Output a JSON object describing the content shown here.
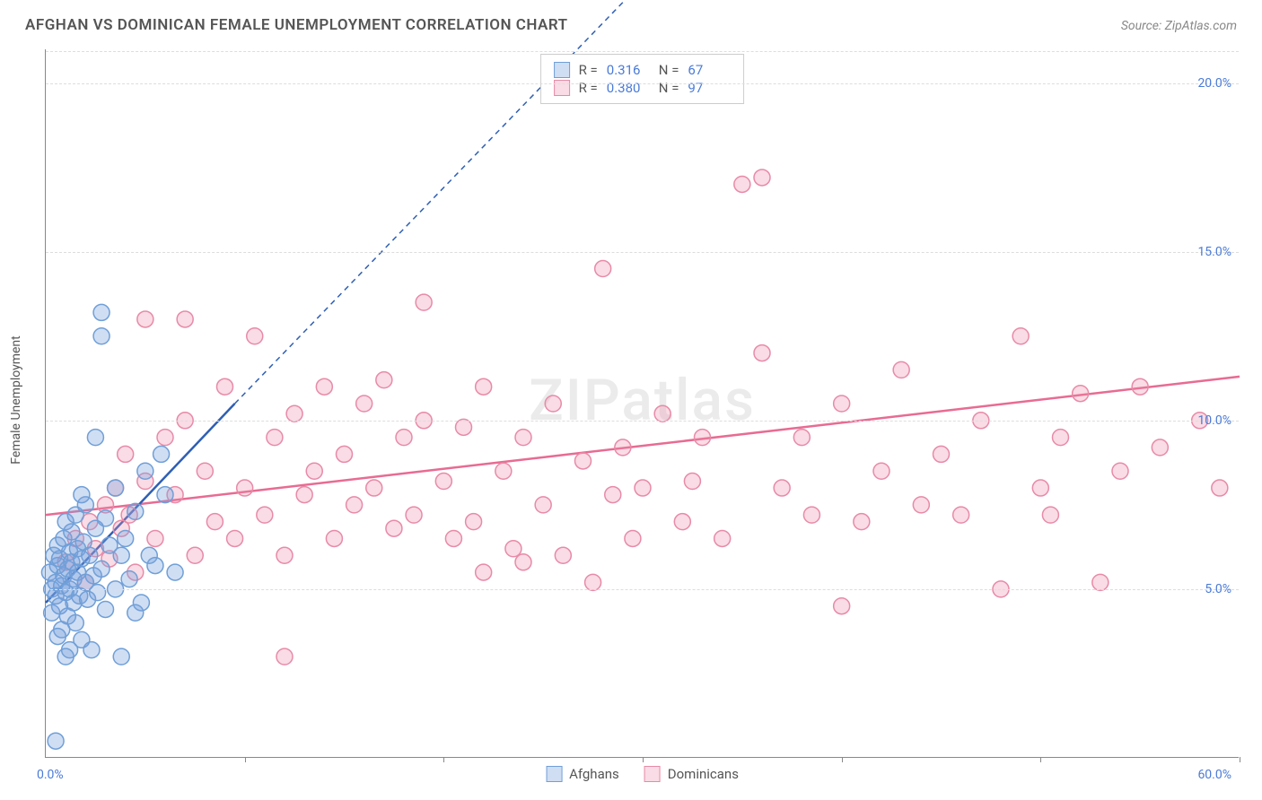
{
  "header": {
    "title": "AFGHAN VS DOMINICAN FEMALE UNEMPLOYMENT CORRELATION CHART",
    "source": "Source: ZipAtlas.com"
  },
  "chart": {
    "type": "scatter",
    "watermark": "ZIPatlas",
    "background_color": "#ffffff",
    "grid_color": "#dddddd",
    "axis_color": "#888888",
    "y_axis_title": "Female Unemployment",
    "xlim": [
      0,
      60
    ],
    "ylim": [
      0,
      21
    ],
    "x_ticks": [
      0,
      10,
      20,
      30,
      40,
      50,
      60
    ],
    "x_tick_labels": {
      "0": "0.0%",
      "60": "60.0%"
    },
    "y_ticks": [
      5,
      10,
      15,
      20
    ],
    "y_tick_labels": {
      "5": "5.0%",
      "10": "10.0%",
      "15": "15.0%",
      "20": "20.0%"
    },
    "marker_radius": 9,
    "marker_stroke_width": 1.5,
    "series": {
      "afghans": {
        "label": "Afghans",
        "color_fill": "rgba(120,160,220,0.35)",
        "color_stroke": "#6f9fd8",
        "R": "0.316",
        "N": "67",
        "trend": {
          "x1": 0,
          "y1": 4.6,
          "x2": 9.5,
          "y2": 10.5,
          "dash_x2": 30,
          "dash_y2": 23,
          "color": "#2f5fb5",
          "width": 2.5
        },
        "points": [
          [
            0.2,
            5.5
          ],
          [
            0.3,
            5.0
          ],
          [
            0.3,
            4.3
          ],
          [
            0.4,
            6.0
          ],
          [
            0.5,
            5.2
          ],
          [
            0.5,
            4.8
          ],
          [
            0.6,
            5.7
          ],
          [
            0.6,
            6.3
          ],
          [
            0.7,
            4.5
          ],
          [
            0.7,
            5.9
          ],
          [
            0.8,
            5.1
          ],
          [
            0.8,
            3.8
          ],
          [
            0.9,
            6.5
          ],
          [
            0.9,
            5.4
          ],
          [
            1.0,
            4.9
          ],
          [
            1.0,
            7.0
          ],
          [
            1.1,
            5.6
          ],
          [
            1.1,
            4.2
          ],
          [
            1.2,
            6.1
          ],
          [
            1.2,
            5.0
          ],
          [
            1.3,
            5.8
          ],
          [
            1.3,
            6.7
          ],
          [
            1.4,
            4.6
          ],
          [
            1.4,
            5.3
          ],
          [
            1.5,
            7.2
          ],
          [
            1.5,
            4.0
          ],
          [
            1.6,
            5.5
          ],
          [
            1.6,
            6.2
          ],
          [
            1.7,
            4.8
          ],
          [
            1.8,
            5.9
          ],
          [
            1.8,
            3.5
          ],
          [
            1.9,
            6.4
          ],
          [
            2.0,
            5.2
          ],
          [
            2.0,
            7.5
          ],
          [
            2.1,
            4.7
          ],
          [
            2.2,
            6.0
          ],
          [
            2.3,
            3.2
          ],
          [
            2.4,
            5.4
          ],
          [
            2.5,
            6.8
          ],
          [
            2.6,
            4.9
          ],
          [
            2.8,
            5.6
          ],
          [
            3.0,
            7.1
          ],
          [
            3.0,
            4.4
          ],
          [
            3.2,
            6.3
          ],
          [
            3.5,
            5.0
          ],
          [
            3.5,
            8.0
          ],
          [
            3.8,
            3.0
          ],
          [
            4.0,
            6.5
          ],
          [
            4.2,
            5.3
          ],
          [
            4.5,
            7.3
          ],
          [
            4.8,
            4.6
          ],
          [
            5.0,
            8.5
          ],
          [
            5.2,
            6.0
          ],
          [
            5.5,
            5.7
          ],
          [
            5.8,
            9.0
          ],
          [
            6.0,
            7.8
          ],
          [
            6.5,
            5.5
          ],
          [
            0.5,
            0.5
          ],
          [
            1.2,
            3.2
          ],
          [
            2.5,
            9.5
          ],
          [
            2.8,
            12.5
          ],
          [
            2.8,
            13.2
          ],
          [
            1.0,
            3.0
          ],
          [
            1.8,
            7.8
          ],
          [
            0.6,
            3.6
          ],
          [
            3.8,
            6.0
          ],
          [
            4.5,
            4.3
          ]
        ]
      },
      "dominicans": {
        "label": "Dominicans",
        "color_fill": "rgba(235,140,170,0.30)",
        "color_stroke": "#e88aa8",
        "R": "0.380",
        "N": "97",
        "trend": {
          "x1": 0,
          "y1": 7.2,
          "x2": 60,
          "y2": 11.3,
          "color": "#e86b93",
          "width": 2.5
        },
        "points": [
          [
            1.0,
            5.8
          ],
          [
            1.5,
            6.5
          ],
          [
            2.0,
            5.2
          ],
          [
            2.2,
            7.0
          ],
          [
            2.5,
            6.2
          ],
          [
            3.0,
            7.5
          ],
          [
            3.2,
            5.9
          ],
          [
            3.5,
            8.0
          ],
          [
            3.8,
            6.8
          ],
          [
            4.0,
            9.0
          ],
          [
            4.2,
            7.2
          ],
          [
            4.5,
            5.5
          ],
          [
            5.0,
            8.2
          ],
          [
            5.0,
            13.0
          ],
          [
            5.5,
            6.5
          ],
          [
            6.0,
            9.5
          ],
          [
            6.5,
            7.8
          ],
          [
            7.0,
            10.0
          ],
          [
            7.0,
            13.0
          ],
          [
            7.5,
            6.0
          ],
          [
            8.0,
            8.5
          ],
          [
            8.5,
            7.0
          ],
          [
            9.0,
            11.0
          ],
          [
            9.5,
            6.5
          ],
          [
            10.0,
            8.0
          ],
          [
            10.5,
            12.5
          ],
          [
            11.0,
            7.2
          ],
          [
            11.5,
            9.5
          ],
          [
            12.0,
            6.0
          ],
          [
            12.0,
            3.0
          ],
          [
            12.5,
            10.2
          ],
          [
            13.0,
            7.8
          ],
          [
            13.5,
            8.5
          ],
          [
            14.0,
            11.0
          ],
          [
            14.5,
            6.5
          ],
          [
            15.0,
            9.0
          ],
          [
            15.5,
            7.5
          ],
          [
            16.0,
            10.5
          ],
          [
            16.5,
            8.0
          ],
          [
            17.0,
            11.2
          ],
          [
            17.5,
            6.8
          ],
          [
            18.0,
            9.5
          ],
          [
            18.5,
            7.2
          ],
          [
            19.0,
            10.0
          ],
          [
            19.0,
            13.5
          ],
          [
            20.0,
            8.2
          ],
          [
            20.5,
            6.5
          ],
          [
            21.0,
            9.8
          ],
          [
            21.5,
            7.0
          ],
          [
            22.0,
            11.0
          ],
          [
            22.0,
            5.5
          ],
          [
            23.0,
            8.5
          ],
          [
            23.5,
            6.2
          ],
          [
            24.0,
            5.8
          ],
          [
            24.0,
            9.5
          ],
          [
            25.0,
            7.5
          ],
          [
            25.5,
            10.5
          ],
          [
            26.0,
            6.0
          ],
          [
            27.0,
            8.8
          ],
          [
            27.5,
            5.2
          ],
          [
            28.0,
            14.5
          ],
          [
            28.5,
            7.8
          ],
          [
            29.0,
            9.2
          ],
          [
            29.5,
            6.5
          ],
          [
            30.0,
            8.0
          ],
          [
            31.0,
            10.2
          ],
          [
            32.0,
            7.0
          ],
          [
            32.5,
            8.2
          ],
          [
            33.0,
            9.5
          ],
          [
            34.0,
            6.5
          ],
          [
            35.0,
            17.0
          ],
          [
            36.0,
            17.2
          ],
          [
            36.0,
            12.0
          ],
          [
            37.0,
            8.0
          ],
          [
            38.0,
            9.5
          ],
          [
            38.5,
            7.2
          ],
          [
            40.0,
            10.5
          ],
          [
            40.0,
            4.5
          ],
          [
            41.0,
            7.0
          ],
          [
            42.0,
            8.5
          ],
          [
            43.0,
            11.5
          ],
          [
            44.0,
            7.5
          ],
          [
            45.0,
            9.0
          ],
          [
            46.0,
            7.2
          ],
          [
            47.0,
            10.0
          ],
          [
            48.0,
            5.0
          ],
          [
            49.0,
            12.5
          ],
          [
            50.0,
            8.0
          ],
          [
            50.5,
            7.2
          ],
          [
            51.0,
            9.5
          ],
          [
            52.0,
            10.8
          ],
          [
            53.0,
            5.2
          ],
          [
            54.0,
            8.5
          ],
          [
            55.0,
            11.0
          ],
          [
            56.0,
            9.2
          ],
          [
            58.0,
            10.0
          ],
          [
            59.0,
            8.0
          ]
        ]
      }
    },
    "stats_box": {
      "R_label": "R  =",
      "N_label": "N  ="
    }
  }
}
